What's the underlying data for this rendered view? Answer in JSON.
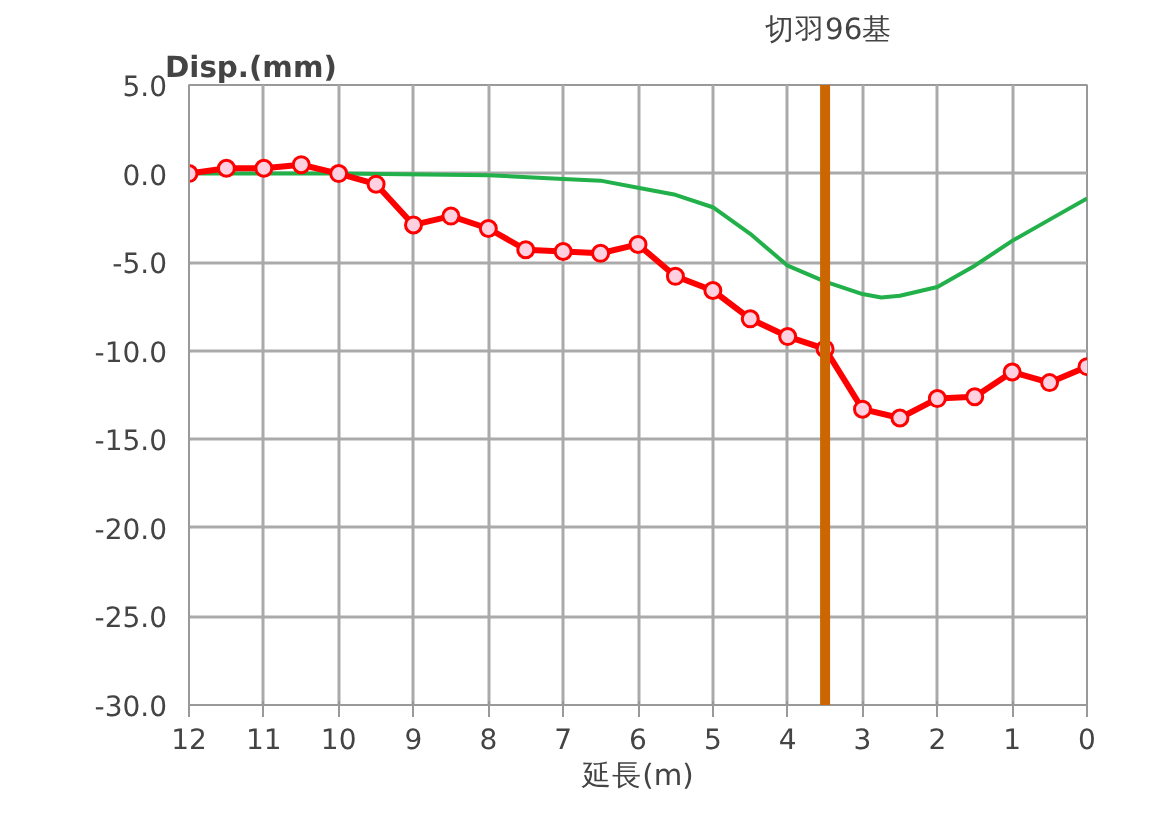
{
  "chart_data": {
    "type": "line",
    "ylabel": "Disp.(mm)",
    "xlabel": "延長(m)",
    "xlim": [
      12,
      0
    ],
    "xticks": [
      12,
      11,
      10,
      9,
      8,
      7,
      6,
      5,
      4,
      3,
      2,
      1,
      0
    ],
    "ylim": [
      -30,
      5
    ],
    "yticks": [
      {
        "value": 5,
        "label": "5.0"
      },
      {
        "value": 0,
        "label": "0.0"
      },
      {
        "value": -5,
        "label": "-5.0"
      },
      {
        "value": -10,
        "label": "-10.0"
      },
      {
        "value": -15,
        "label": "-15.0"
      },
      {
        "value": -20,
        "label": "-20.0"
      },
      {
        "value": -25,
        "label": "-25.0"
      },
      {
        "value": -30,
        "label": "-30.0"
      }
    ],
    "grid": true,
    "series": [
      {
        "color": "#22b04a",
        "marker": "none",
        "line_style": "solid",
        "x": [
          12,
          10,
          8,
          7,
          6.5,
          6,
          5.5,
          5,
          4.5,
          4,
          3.5,
          3,
          2.75,
          2.5,
          2,
          1.5,
          1,
          0.5,
          0
        ],
        "values": [
          0,
          0,
          -0.1,
          -0.3,
          -0.4,
          -0.8,
          -1.2,
          -1.9,
          -3.4,
          -5.2,
          -6.1,
          -6.8,
          -7.0,
          -6.9,
          -6.4,
          -5.2,
          -3.8,
          -2.6,
          -1.4
        ]
      },
      {
        "color": "#ff0000",
        "marker": "circle",
        "line_style": "solid",
        "x": [
          12,
          11.5,
          11,
          10.5,
          10,
          9.5,
          9,
          8.5,
          8,
          7.5,
          7,
          6.5,
          6,
          5.5,
          5,
          4.5,
          4,
          3.5,
          3,
          2.5,
          2,
          1.5,
          1,
          0.5,
          0
        ],
        "values": [
          0.0,
          0.3,
          0.3,
          0.5,
          0.0,
          -0.6,
          -2.9,
          -2.4,
          -3.1,
          -4.3,
          -4.4,
          -4.5,
          -4.0,
          -5.8,
          -6.6,
          -8.2,
          -9.2,
          -9.9,
          -13.3,
          -13.8,
          -12.7,
          -12.6,
          -11.2,
          -11.8,
          -10.9
        ]
      }
    ],
    "ref_lines": [
      {
        "axis": "x",
        "value": 3.5,
        "label": "切羽96基",
        "color": "#cc6600",
        "line_style": "solid"
      }
    ]
  }
}
